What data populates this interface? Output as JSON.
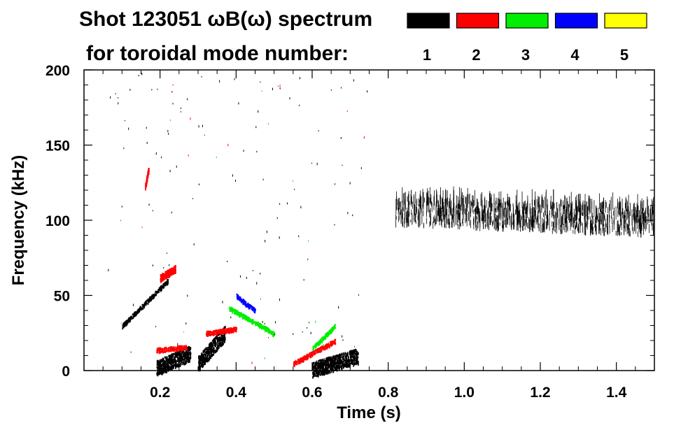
{
  "chart_data": {
    "type": "heatmap",
    "title": "Shot 123051 ωB(ω) spectrum",
    "subtitle": "for toroidal mode number:",
    "xlabel": "Time (s)",
    "ylabel": "Frequency (kHz)",
    "xlim": [
      0.0,
      1.5
    ],
    "ylim": [
      0,
      200
    ],
    "x_ticks": [
      0.2,
      0.4,
      0.6,
      0.8,
      1.0,
      1.2,
      1.4
    ],
    "x_tick_labels": [
      "0.2",
      "0.4",
      "0.6",
      "0.8",
      "1.0",
      "1.2",
      "1.4"
    ],
    "y_ticks": [
      0,
      50,
      100,
      150,
      200
    ],
    "y_tick_labels": [
      "0",
      "50",
      "100",
      "150",
      "200"
    ],
    "legend": {
      "placement": "top-right",
      "entries": [
        {
          "mode": "1",
          "color": "#000000"
        },
        {
          "mode": "2",
          "color": "#ff0000"
        },
        {
          "mode": "3",
          "color": "#00ee00"
        },
        {
          "mode": "4",
          "color": "#0000ff"
        },
        {
          "mode": "5",
          "color": "#ffff00"
        }
      ]
    },
    "features": [
      {
        "mode": 1,
        "desc": "broad band",
        "t": [
          0.82,
          1.5
        ],
        "f_low": [
          95,
          88
        ],
        "f_high": [
          125,
          120
        ]
      },
      {
        "mode": 1,
        "desc": "chirp",
        "t": [
          0.1,
          0.22
        ],
        "f": [
          30,
          60
        ]
      },
      {
        "mode": 1,
        "desc": "burst",
        "t": [
          0.19,
          0.28
        ],
        "f": [
          2,
          12
        ]
      },
      {
        "mode": 1,
        "desc": "burst",
        "t": [
          0.3,
          0.37
        ],
        "f": [
          5,
          25
        ]
      },
      {
        "mode": 1,
        "desc": "burst",
        "t": [
          0.6,
          0.72
        ],
        "f": [
          1,
          10
        ]
      },
      {
        "mode": 2,
        "desc": "blob",
        "t": [
          0.16,
          0.17
        ],
        "f": [
          122,
          135
        ]
      },
      {
        "mode": 2,
        "desc": "blob",
        "t": [
          0.2,
          0.24
        ],
        "f": [
          62,
          68
        ]
      },
      {
        "mode": 2,
        "desc": "band",
        "t": [
          0.19,
          0.27
        ],
        "f": [
          14,
          16
        ]
      },
      {
        "mode": 2,
        "desc": "band",
        "t": [
          0.32,
          0.4
        ],
        "f": [
          25,
          28
        ]
      },
      {
        "mode": 2,
        "desc": "band",
        "t": [
          0.55,
          0.66
        ],
        "f": [
          5,
          20
        ]
      },
      {
        "mode": 3,
        "desc": "chirp",
        "t": [
          0.38,
          0.5
        ],
        "f": [
          42,
          25
        ]
      },
      {
        "mode": 3,
        "desc": "band",
        "t": [
          0.6,
          0.66
        ],
        "f": [
          15,
          30
        ]
      },
      {
        "mode": 4,
        "desc": "chirp",
        "t": [
          0.4,
          0.45
        ],
        "f": [
          50,
          40
        ]
      }
    ]
  }
}
